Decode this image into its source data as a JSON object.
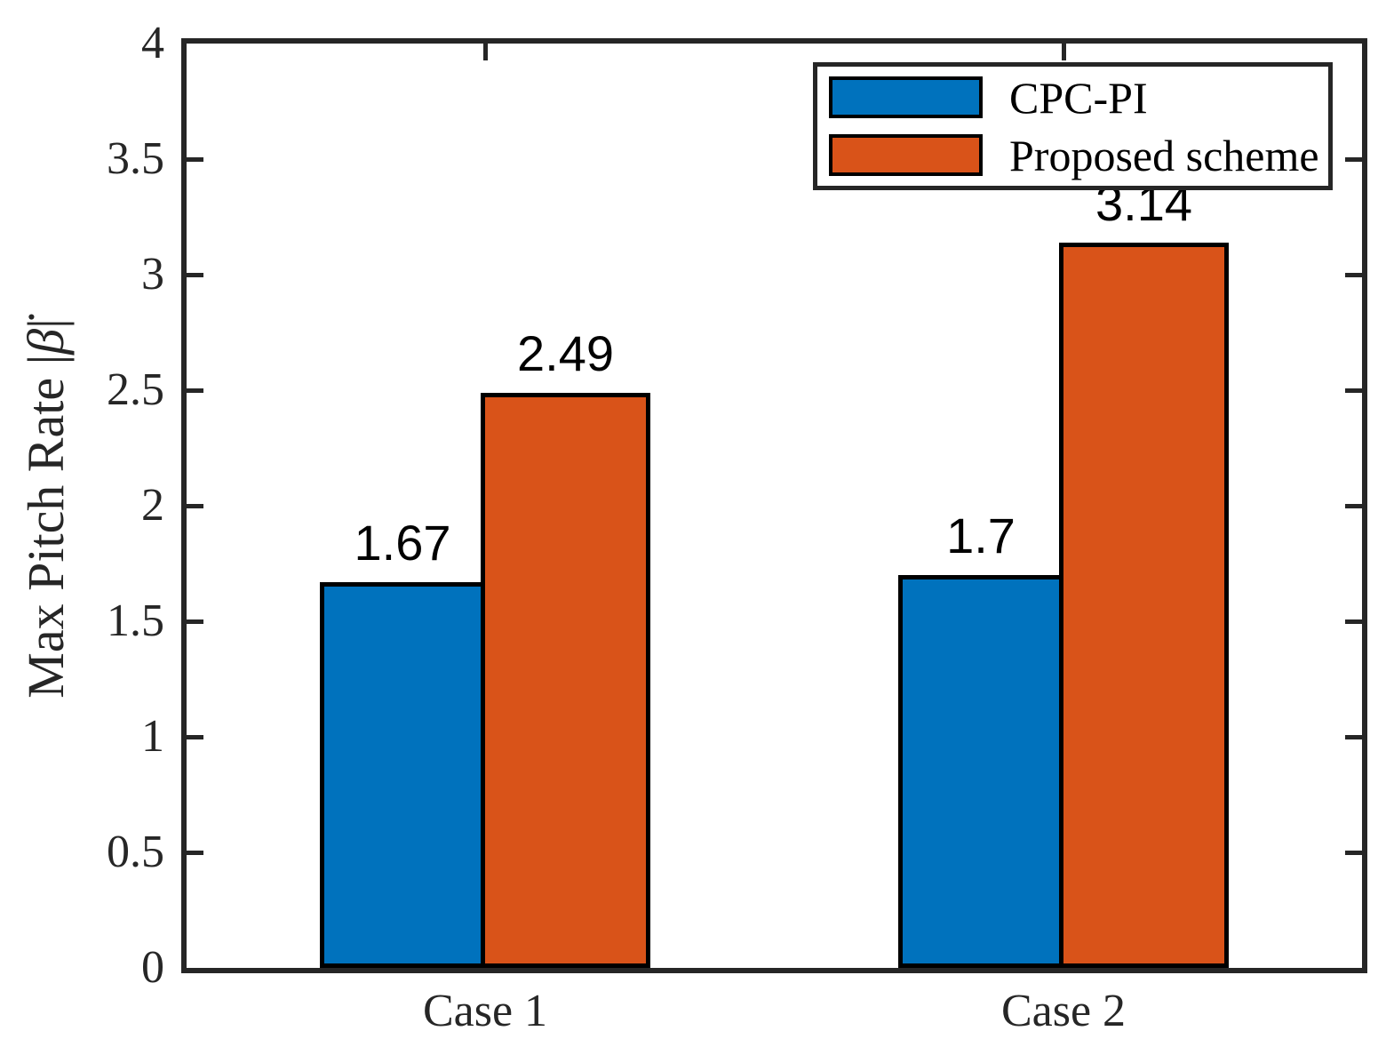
{
  "chart_data": {
    "type": "bar",
    "title": "",
    "categories": [
      "Case 1",
      "Case 2"
    ],
    "series": [
      {
        "name": "CPC-PI",
        "color": "#0072BD",
        "values": [
          1.67,
          1.7
        ],
        "value_labels": [
          "1.67",
          "1.7"
        ]
      },
      {
        "name": "Proposed scheme",
        "color": "#D95319",
        "values": [
          2.49,
          3.14
        ],
        "value_labels": [
          "2.49",
          "3.14"
        ]
      }
    ],
    "ylabel": {
      "prefix": "Max Pitch Rate |",
      "symbol": "β̇",
      "suffix": "|"
    },
    "xlabel": "",
    "ylim": [
      0,
      4
    ],
    "ytick_labels": [
      "0",
      "0.5",
      "1",
      "1.5",
      "2",
      "2.5",
      "3",
      "3.5",
      "4"
    ],
    "yticks": [
      0,
      0.5,
      1,
      1.5,
      2,
      2.5,
      3,
      3.5,
      4
    ],
    "grid": "off",
    "legend_position": "top-right",
    "axis_color": "#262626",
    "bar_edge_color": "#000000"
  }
}
